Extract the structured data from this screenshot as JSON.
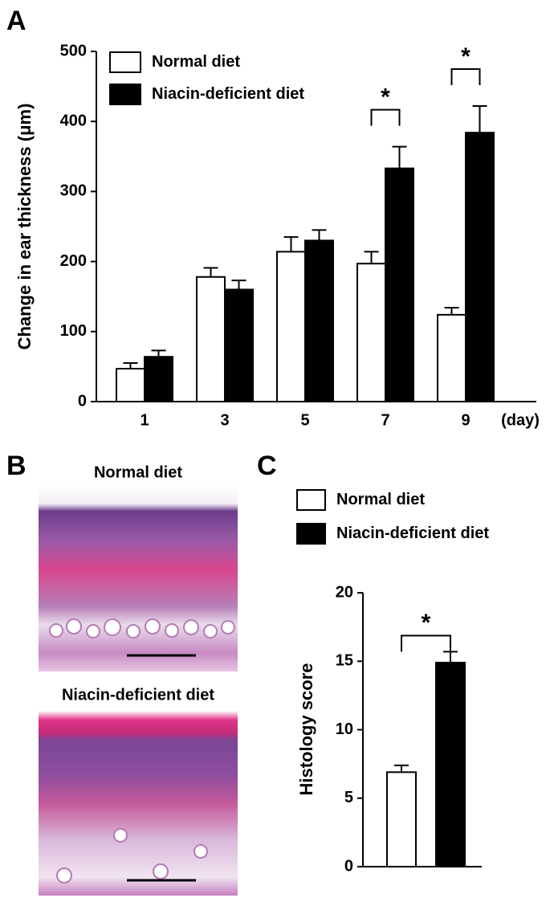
{
  "panel_labels": [
    "A",
    "B",
    "C"
  ],
  "images": {
    "labels": [
      "Normal diet",
      "Niacin-deficient diet"
    ]
  },
  "chart_data": [
    {
      "type": "bar",
      "y_label": "Change in ear thickness (μm)",
      "x_label": "(day)",
      "categories": [
        "1",
        "3",
        "5",
        "7",
        "9"
      ],
      "series": [
        {
          "name": "Normal diet",
          "color": "#ffffff",
          "values": [
            47,
            178,
            214,
            197,
            124
          ],
          "errors": [
            8,
            13,
            21,
            17,
            10
          ]
        },
        {
          "name": "Niacin-deficient diet",
          "color": "#000000",
          "values": [
            64,
            160,
            230,
            333,
            384
          ],
          "errors": [
            9,
            13,
            15,
            31,
            38
          ]
        }
      ],
      "significance": [
        null,
        null,
        null,
        "*",
        "*"
      ],
      "ylim": [
        0,
        500
      ],
      "yticks": [
        0,
        100,
        200,
        300,
        400,
        500
      ],
      "legend": "top-left"
    },
    {
      "type": "bar",
      "y_label": "Histology score",
      "categories": [
        null
      ],
      "series": [
        {
          "name": "Normal diet",
          "color": "#ffffff",
          "values": [
            6.9
          ],
          "errors": [
            0.5
          ]
        },
        {
          "name": "Niacin-deficient diet",
          "color": "#000000",
          "values": [
            14.9
          ],
          "errors": [
            0.8
          ]
        }
      ],
      "significance": [
        "*"
      ],
      "ylim": [
        0,
        20
      ],
      "yticks": [
        0,
        5,
        10,
        15,
        20
      ],
      "legend": "above"
    }
  ]
}
